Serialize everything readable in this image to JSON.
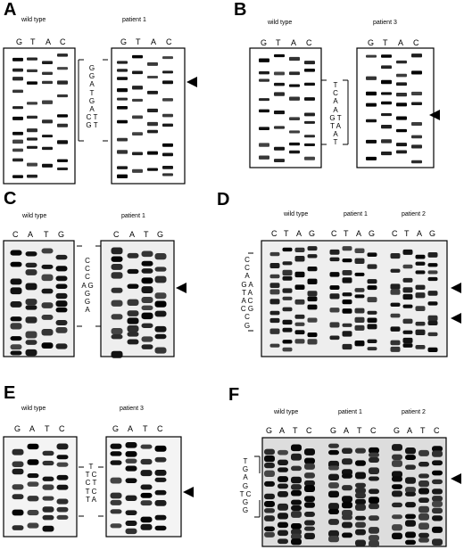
{
  "panels": {
    "A": {
      "letter": "A",
      "left_caption": "wild type",
      "right_caption": "patient 1",
      "left_lanes": [
        "G",
        "T",
        "A",
        "C"
      ],
      "right_lanes": [
        "G",
        "T",
        "A",
        "C"
      ],
      "sequence": "G\nG\nA\nT\nG\nA\nC T\nG T"
    },
    "B": {
      "letter": "B",
      "left_caption": "wild type",
      "right_caption": "patient 3",
      "left_lanes": [
        "G",
        "T",
        "A",
        "C"
      ],
      "right_lanes": [
        "G",
        "T",
        "A",
        "C"
      ],
      "sequence": "T\nC\nA\nA\nG T\nT A\nA\nT"
    },
    "C": {
      "letter": "C",
      "left_caption": "wild type",
      "right_caption": "patient 1",
      "left_lanes": [
        "C",
        "A",
        "T",
        "G"
      ],
      "right_lanes": [
        "C",
        "A",
        "T",
        "G"
      ],
      "sequence": "C\nC\nC\nA G\nG\nG\nA"
    },
    "D": {
      "letter": "D",
      "captions": [
        "wild type",
        "patient 1",
        "patient 2"
      ],
      "lanes": [
        "C",
        "T",
        "A",
        "G",
        "C",
        "T",
        "A",
        "G",
        "C",
        "T",
        "A",
        "G"
      ],
      "sequence": "C\nC\nA\nG A\nT A\nA C\nC G\nC\nG"
    },
    "E": {
      "letter": "E",
      "left_caption": "wild type",
      "right_caption": "patient 3",
      "left_lanes": [
        "G",
        "A",
        "T",
        "C"
      ],
      "right_lanes": [
        "G",
        "A",
        "T",
        "C"
      ],
      "sequence": "T\nT C\nC T\nT C\nT A"
    },
    "F": {
      "letter": "F",
      "captions": [
        "wild type",
        "patient 1",
        "patient 2"
      ],
      "lanes": [
        "G",
        "A",
        "T",
        "C",
        "G",
        "A",
        "T",
        "C",
        "G",
        "A",
        "T",
        "C"
      ],
      "sequence": "T\nG\nA\nG\nT C\nG\nG"
    }
  }
}
